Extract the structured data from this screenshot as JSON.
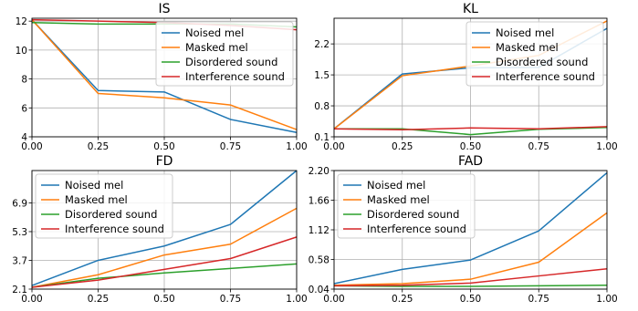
{
  "colors": {
    "noised": "#1f77b4",
    "masked": "#ff7f0e",
    "disordered": "#2ca02c",
    "interference": "#d62728",
    "grid": "#b0b0b0",
    "legend_border": "#cccccc"
  },
  "chart_data": [
    {
      "type": "line",
      "title": "IS",
      "x": [
        0.0,
        0.25,
        0.5,
        0.75,
        1.0
      ],
      "x_ticks": [
        "0.00",
        "0.25",
        "0.50",
        "0.75",
        "1.00"
      ],
      "xlim": [
        0.0,
        1.0
      ],
      "ylim": [
        4.0,
        12.2
      ],
      "y_ticks": [
        4,
        6,
        8,
        10,
        12
      ],
      "y_tick_labels": [
        "4",
        "6",
        "8",
        "10",
        "12"
      ],
      "grid": true,
      "legend": "top-right",
      "series": [
        {
          "name": "Noised mel",
          "color_key": "noised",
          "values": [
            12.1,
            7.2,
            7.1,
            5.2,
            4.3
          ]
        },
        {
          "name": "Masked mel",
          "color_key": "masked",
          "values": [
            12.1,
            7.0,
            6.7,
            6.2,
            4.5
          ]
        },
        {
          "name": "Disordered sound",
          "color_key": "disordered",
          "values": [
            11.9,
            11.8,
            11.8,
            11.8,
            11.6
          ]
        },
        {
          "name": "Interference sound",
          "color_key": "interference",
          "values": [
            12.1,
            12.0,
            11.9,
            11.7,
            11.4
          ]
        }
      ]
    },
    {
      "type": "line",
      "title": "KL",
      "x": [
        0.0,
        0.25,
        0.5,
        0.75,
        1.0
      ],
      "x_ticks": [
        "0.00",
        "0.25",
        "0.50",
        "0.75",
        "1.00"
      ],
      "xlim": [
        0.0,
        1.0
      ],
      "ylim": [
        0.1,
        2.78
      ],
      "y_ticks": [
        0.1,
        0.8,
        1.5,
        2.2
      ],
      "y_tick_labels": [
        "0.1",
        "0.8",
        "1.5",
        "2.2"
      ],
      "grid": true,
      "legend": "top-right",
      "series": [
        {
          "name": "Noised mel",
          "color_key": "noised",
          "values": [
            0.28,
            1.52,
            1.66,
            1.67,
            2.55
          ]
        },
        {
          "name": "Masked mel",
          "color_key": "masked",
          "values": [
            0.28,
            1.48,
            1.7,
            1.94,
            2.72
          ]
        },
        {
          "name": "Disordered sound",
          "color_key": "disordered",
          "values": [
            0.28,
            0.28,
            0.15,
            0.27,
            0.31
          ]
        },
        {
          "name": "Interference sound",
          "color_key": "interference",
          "values": [
            0.28,
            0.26,
            0.3,
            0.28,
            0.33
          ]
        }
      ]
    },
    {
      "type": "line",
      "title": "FD",
      "x": [
        0.0,
        0.25,
        0.5,
        0.75,
        1.0
      ],
      "x_ticks": [
        "0.00",
        "0.25",
        "0.50",
        "0.75",
        "1.00"
      ],
      "xlim": [
        0.0,
        1.0
      ],
      "ylim": [
        2.1,
        8.7
      ],
      "y_ticks": [
        2.1,
        3.7,
        5.3,
        6.9
      ],
      "y_tick_labels": [
        "2.1",
        "3.7",
        "5.3",
        "6.9"
      ],
      "grid": true,
      "legend": "top-left",
      "series": [
        {
          "name": "Noised mel",
          "color_key": "noised",
          "values": [
            2.3,
            3.7,
            4.5,
            5.7,
            8.7
          ]
        },
        {
          "name": "Masked mel",
          "color_key": "masked",
          "values": [
            2.2,
            2.9,
            4.0,
            4.6,
            6.6
          ]
        },
        {
          "name": "Disordered sound",
          "color_key": "disordered",
          "values": [
            2.2,
            2.7,
            3.0,
            3.25,
            3.5
          ]
        },
        {
          "name": "Interference sound",
          "color_key": "interference",
          "values": [
            2.2,
            2.6,
            3.2,
            3.8,
            5.0
          ]
        }
      ]
    },
    {
      "type": "line",
      "title": "FAD",
      "x": [
        0.0,
        0.25,
        0.5,
        0.75,
        1.0
      ],
      "x_ticks": [
        "0.00",
        "0.25",
        "0.50",
        "0.75",
        "1.00"
      ],
      "xlim": [
        0.0,
        1.0
      ],
      "ylim": [
        0.04,
        2.2
      ],
      "y_ticks": [
        0.04,
        0.58,
        1.12,
        1.66,
        2.2
      ],
      "y_tick_labels": [
        "0.04",
        "0.58",
        "1.12",
        "1.66",
        "2.20"
      ],
      "grid": true,
      "legend": "top-left",
      "series": [
        {
          "name": "Noised mel",
          "color_key": "noised",
          "values": [
            0.14,
            0.4,
            0.57,
            1.1,
            2.16
          ]
        },
        {
          "name": "Masked mel",
          "color_key": "masked",
          "values": [
            0.11,
            0.14,
            0.22,
            0.53,
            1.43
          ]
        },
        {
          "name": "Disordered sound",
          "color_key": "disordered",
          "values": [
            0.1,
            0.09,
            0.09,
            0.1,
            0.11
          ]
        },
        {
          "name": "Interference sound",
          "color_key": "interference",
          "values": [
            0.1,
            0.11,
            0.15,
            0.28,
            0.41
          ]
        }
      ]
    }
  ]
}
